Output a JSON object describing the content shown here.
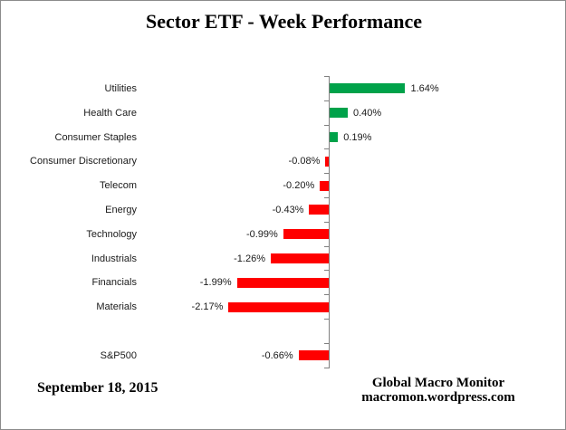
{
  "title": "Sector ETF - Week Performance",
  "footer": {
    "date": "September 18, 2015",
    "attribution_line1": "Global Macro Monitor",
    "attribution_line2": "macromon.wordpress.com"
  },
  "chart_data": {
    "type": "bar",
    "orientation": "horizontal",
    "title": "Sector ETF - Week Performance",
    "categories": [
      "Utilities",
      "Health Care",
      "Consumer Staples",
      "Consumer Discretionary",
      "Telecom",
      "Energy",
      "Technology",
      "Industrials",
      "Financials",
      "Materials",
      "",
      "S&P500"
    ],
    "values": [
      1.64,
      0.4,
      0.19,
      -0.08,
      -0.2,
      -0.43,
      -0.99,
      -1.26,
      -1.99,
      -2.17,
      null,
      -0.66
    ],
    "value_labels": [
      "1.64%",
      "0.40%",
      "0.19%",
      "-0.08%",
      "-0.20%",
      "-0.43%",
      "-0.99%",
      "-1.26%",
      "-1.99%",
      "-2.17%",
      "",
      "-0.66%"
    ],
    "unit": "%",
    "xlim": [
      -2.5,
      2.5
    ],
    "grid": false,
    "legend": false,
    "data_label_position": "outside-end",
    "colors": {
      "positive": "#00A24A",
      "negative": "#FF0000",
      "axis": "#808080",
      "text": "#1a1a1a"
    }
  }
}
